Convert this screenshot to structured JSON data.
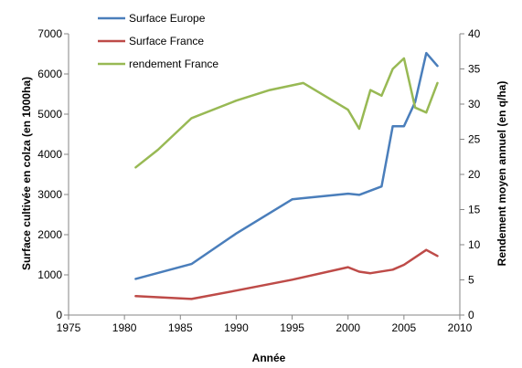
{
  "chart_data": {
    "type": "line",
    "title": "",
    "xlabel": "Année",
    "ylabel_left": "Surface cultivée en colza (en 1000ha)",
    "ylabel_right": "Rendement moyen annuel (en q/ha)",
    "x_ticks": [
      "1975",
      "1980",
      "1985",
      "1990",
      "1995",
      "2000",
      "2005",
      "2010"
    ],
    "y_left_ticks": [
      "0",
      "1000",
      "2000",
      "3000",
      "4000",
      "5000",
      "6000",
      "7000"
    ],
    "y_right_ticks": [
      "0",
      "5",
      "10",
      "15",
      "20",
      "25",
      "30",
      "35",
      "40"
    ],
    "xlim": [
      1975,
      2010
    ],
    "ylim_left": [
      0,
      7000
    ],
    "ylim_right": [
      0,
      40
    ],
    "legend_position": "top-left",
    "series": [
      {
        "name": "Surface Europe",
        "axis": "left",
        "color": "#4a7ebb",
        "points": [
          [
            1981,
            900
          ],
          [
            1986,
            1270
          ],
          [
            1990,
            2030
          ],
          [
            1995,
            2880
          ],
          [
            1996,
            2910
          ],
          [
            2000,
            3020
          ],
          [
            2001,
            2990
          ],
          [
            2003,
            3200
          ],
          [
            2004,
            4700
          ],
          [
            2005,
            4700
          ],
          [
            2006,
            5300
          ],
          [
            2007,
            6520
          ],
          [
            2008,
            6200
          ]
        ]
      },
      {
        "name": "Surface France",
        "axis": "left",
        "color": "#be4b48",
        "points": [
          [
            1981,
            470
          ],
          [
            1986,
            400
          ],
          [
            1990,
            610
          ],
          [
            1995,
            880
          ],
          [
            2000,
            1190
          ],
          [
            2001,
            1080
          ],
          [
            2002,
            1040
          ],
          [
            2004,
            1130
          ],
          [
            2005,
            1250
          ],
          [
            2007,
            1620
          ],
          [
            2008,
            1470
          ]
        ]
      },
      {
        "name": "rendement France",
        "axis": "right",
        "color": "#98b954",
        "points": [
          [
            1981,
            21
          ],
          [
            1983,
            23.5
          ],
          [
            1986,
            28
          ],
          [
            1990,
            30.5
          ],
          [
            1993,
            32
          ],
          [
            1996,
            33
          ],
          [
            2000,
            29.2
          ],
          [
            2001,
            26.5
          ],
          [
            2002,
            32
          ],
          [
            2003,
            31.2
          ],
          [
            2004,
            35
          ],
          [
            2005,
            36.5
          ],
          [
            2006,
            29.5
          ],
          [
            2007,
            28.8
          ],
          [
            2008,
            33
          ]
        ]
      }
    ]
  }
}
